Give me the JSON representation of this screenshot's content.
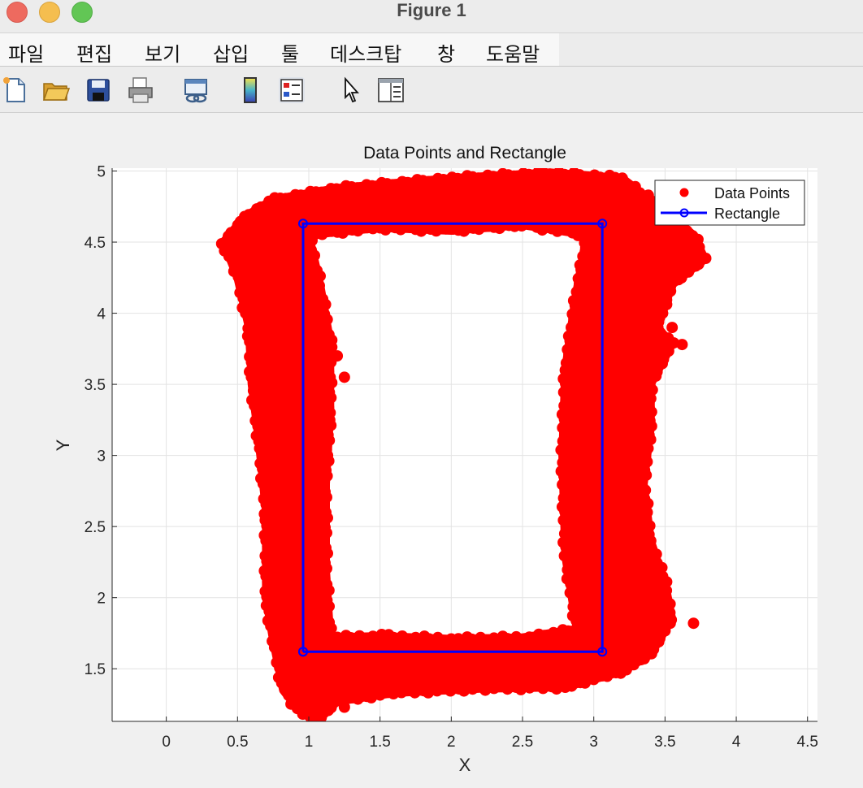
{
  "window": {
    "title": "Figure 1"
  },
  "menu": {
    "items": [
      "파일",
      "편집",
      "보기",
      "삽입",
      "툴",
      "데스크탑",
      "창",
      "도움말"
    ]
  },
  "toolbar": {
    "tools": [
      "new-figure-icon",
      "open-folder-icon",
      "save-icon",
      "print-icon",
      "link-plot-icon",
      "colorbar-icon",
      "legend-icon",
      "pointer-icon",
      "property-inspector-icon"
    ]
  },
  "chart_data": {
    "type": "scatter",
    "title": "Data Points and Rectangle",
    "xlabel": "X",
    "ylabel": "Y",
    "xlim": [
      -0.38,
      4.57
    ],
    "ylim": [
      1.13,
      5.02
    ],
    "xticks": [
      "0",
      "0.5",
      "1",
      "1.5",
      "2",
      "2.5",
      "3",
      "3.5",
      "4",
      "4.5"
    ],
    "yticks": [
      "1.5",
      "2",
      "2.5",
      "3",
      "3.5",
      "4",
      "4.5",
      "5"
    ],
    "grid": true,
    "legend_placement": "top-right",
    "series": [
      {
        "name": "Data Points",
        "color": "#ff0000",
        "marker": "filled-circle",
        "shape": "noisy band around rectangle outline",
        "outer_hull": [
          [
            0.4,
            4.5
          ],
          [
            0.55,
            4.68
          ],
          [
            0.75,
            4.8
          ],
          [
            1.2,
            4.88
          ],
          [
            2.0,
            4.95
          ],
          [
            2.7,
            4.99
          ],
          [
            3.2,
            4.95
          ],
          [
            3.5,
            4.72
          ],
          [
            3.7,
            4.55
          ],
          [
            3.78,
            4.38
          ],
          [
            3.55,
            4.2
          ],
          [
            3.45,
            3.9
          ],
          [
            3.55,
            3.78
          ],
          [
            3.4,
            3.5
          ],
          [
            3.4,
            3.2
          ],
          [
            3.35,
            2.8
          ],
          [
            3.4,
            2.4
          ],
          [
            3.5,
            2.1
          ],
          [
            3.55,
            1.85
          ],
          [
            3.4,
            1.6
          ],
          [
            3.2,
            1.48
          ],
          [
            2.8,
            1.37
          ],
          [
            2.2,
            1.36
          ],
          [
            1.6,
            1.33
          ],
          [
            1.2,
            1.27
          ],
          [
            1.05,
            1.12
          ],
          [
            0.92,
            1.22
          ],
          [
            0.82,
            1.35
          ],
          [
            0.75,
            1.7
          ],
          [
            0.7,
            2.0
          ],
          [
            0.7,
            2.6
          ],
          [
            0.65,
            3.1
          ],
          [
            0.6,
            3.5
          ],
          [
            0.58,
            3.9
          ],
          [
            0.5,
            4.25
          ]
        ],
        "inner_hole": [
          [
            1.0,
            4.55
          ],
          [
            1.5,
            4.6
          ],
          [
            2.0,
            4.58
          ],
          [
            2.5,
            4.62
          ],
          [
            2.95,
            4.55
          ],
          [
            2.87,
            4.1
          ],
          [
            2.8,
            3.6
          ],
          [
            2.78,
            3.0
          ],
          [
            2.8,
            2.3
          ],
          [
            2.88,
            1.78
          ],
          [
            2.5,
            1.72
          ],
          [
            2.0,
            1.71
          ],
          [
            1.5,
            1.73
          ],
          [
            1.15,
            1.72
          ],
          [
            1.12,
            2.2
          ],
          [
            1.12,
            2.8
          ],
          [
            1.15,
            3.3
          ],
          [
            1.15,
            3.8
          ],
          [
            1.08,
            4.2
          ]
        ],
        "outliers": [
          [
            1.2,
            3.7
          ],
          [
            1.25,
            3.55
          ],
          [
            1.25,
            1.23
          ],
          [
            3.62,
            3.78
          ],
          [
            3.55,
            3.9
          ],
          [
            3.7,
            1.82
          ],
          [
            0.75,
            3.88
          ]
        ]
      },
      {
        "name": "Rectangle",
        "color": "#0000ff",
        "marker": "open-circle",
        "x": [
          0.96,
          3.06,
          3.06,
          0.96,
          0.96
        ],
        "y": [
          1.62,
          1.62,
          4.63,
          4.63,
          1.62
        ]
      }
    ]
  }
}
